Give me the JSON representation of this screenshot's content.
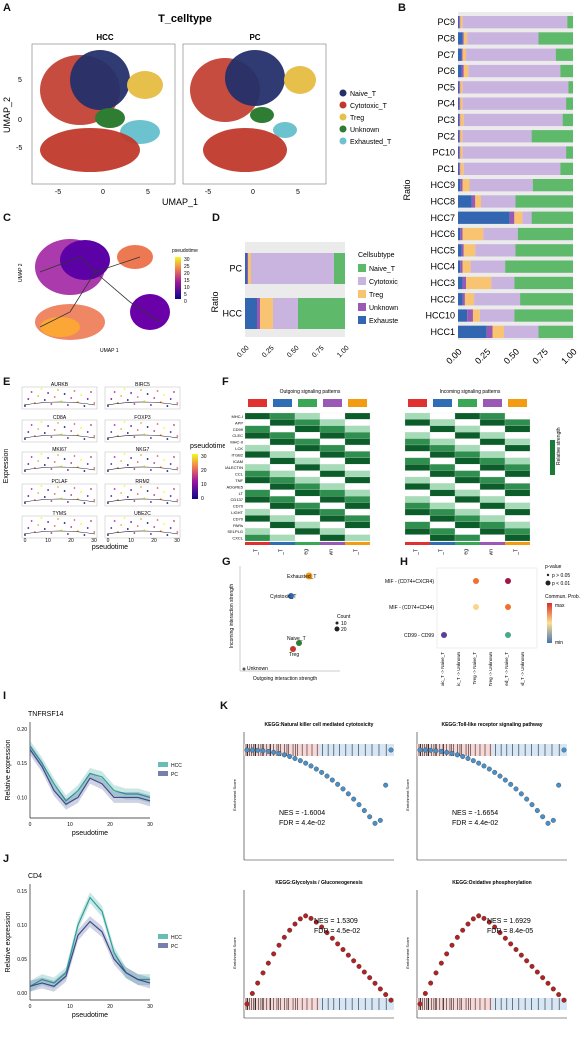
{
  "panel_letters": [
    "A",
    "B",
    "C",
    "D",
    "E",
    "F",
    "G",
    "H",
    "I",
    "J",
    "K"
  ],
  "panelA": {
    "title": "T_celltype",
    "facets": [
      "HCC",
      "PC"
    ],
    "xlabel": "UMAP_1",
    "ylabel": "UMAP_2",
    "xticks": [
      "-5",
      "0",
      "5",
      "-5",
      "0",
      "5"
    ],
    "yticks": [
      "5",
      "0",
      "-5"
    ],
    "legend": [
      {
        "label": "Naive_T",
        "color": "#24306a"
      },
      {
        "label": "Cytotoxic_T",
        "color": "#c0392b"
      },
      {
        "label": "Treg",
        "color": "#e6c04b"
      },
      {
        "label": "Unknown",
        "color": "#2e7d32"
      },
      {
        "label": "Exhausted_T",
        "color": "#6cc3cf"
      }
    ]
  },
  "panelB": {
    "ylabel": "Ratio",
    "xticks": [
      "0.00",
      "0.25",
      "0.50",
      "0.75",
      "1.00"
    ],
    "colors": {
      "exhausted": "#3266b0",
      "unknown": "#9b59b6",
      "treg": "#f8c471",
      "cytotoxic": "#c9b4e0",
      "naive": "#5fb96b"
    }
  },
  "panelC": {
    "legend_title": "pseudotime",
    "legend_ticks": [
      "30",
      "25",
      "20",
      "15",
      "10",
      "5",
      "0"
    ],
    "xlabel": "UMAP 1",
    "ylabel": "UMAP 2"
  },
  "panelD": {
    "ylabel": "Ratio",
    "categories": [
      "PC",
      "HCC"
    ],
    "xticks": [
      "0.00",
      "0.25",
      "0.50",
      "0.75",
      "1.00"
    ],
    "legend_title": "Cellsubtype",
    "legend": [
      {
        "label": "Naive_T",
        "color": "#5fb96b"
      },
      {
        "label": "Cytotoxic_T",
        "color": "#c9b4e0"
      },
      {
        "label": "Treg",
        "color": "#f8c471"
      },
      {
        "label": "Unknown",
        "color": "#9b59b6"
      },
      {
        "label": "Exhausted_T",
        "color": "#3266b0"
      }
    ]
  },
  "panelE": {
    "ylabel": "Expression",
    "xlabel": "pseudotime",
    "genes": [
      "AURKB",
      "BIRC5",
      "CD8A",
      "FOXP3",
      "MKI67",
      "NKG7",
      "PCLAF",
      "RRM2",
      "TYMS",
      "UBE2C"
    ],
    "xticks": [
      "0",
      "10",
      "20",
      "30"
    ],
    "legend_title": "pseudotime",
    "legend_ticks": [
      "30",
      "20",
      "10",
      "0"
    ]
  },
  "panelF": {
    "title_left": "Outgoing signaling patterns",
    "title_right": "Incoming signaling patterns",
    "rows": [
      "MHC-I",
      "APP",
      "CD99",
      "CLEC",
      "MHC-II",
      "LCK",
      "ITGB2",
      "ICAM",
      "GALECTIN",
      "CCL",
      "TNF",
      "ADGRE5",
      "LT",
      "CD137",
      "CD70",
      "LIGHT",
      "CD70",
      "PARs",
      "SELPLG",
      "CXCL"
    ],
    "cols": [
      "Naive_T",
      "Cytotoxic_T",
      "Treg",
      "Unknown",
      "Exhausted_T"
    ],
    "legend_title": "Relative strength"
  },
  "panelG": {
    "xlabel": "Outgoing interaction strength",
    "ylabel": "Incoming interaction strength",
    "points": [
      {
        "label": "Exhausted_T",
        "color": "#f39c12"
      },
      {
        "label": "Cytotoxic_T",
        "color": "#3266b0"
      },
      {
        "label": "Naive_T",
        "color": "#2e7d32"
      },
      {
        "label": "Treg",
        "color": "#c0392b"
      },
      {
        "label": "Unknown",
        "color": "#555555"
      }
    ],
    "legend_title": "Count",
    "legend_ticks": [
      "10",
      "20"
    ]
  },
  "panelH": {
    "rows": [
      "MIF - (CD74+CXCR4)",
      "MIF - (CD74+CD44)",
      "CD99 - CD99"
    ],
    "cols": [
      "Cytotoxic_T -> Naive_T",
      "Cytotoxic_T -> Unknown",
      "Treg -> Naive_T",
      "Treg -> Unknown",
      "Exhausted_T -> Naive_T",
      "Exhausted_T -> Unknown"
    ],
    "legend_pval_title": "p-value",
    "legend_pval": [
      "p > 0.05",
      "p < 0.01"
    ],
    "legend_prob_title": "Commun. Prob.",
    "legend_prob": [
      "max",
      "min"
    ]
  },
  "panelI": {
    "gene": "TNFRSF14",
    "ylabel": "Relative expression",
    "xlabel": "pseudotime",
    "yticks": [
      "0.20",
      "0.15",
      "0.10"
    ],
    "xticks": [
      "0",
      "10",
      "20",
      "30"
    ],
    "legend": [
      {
        "label": "HCC",
        "color": "#2aa198"
      },
      {
        "label": "PC",
        "color": "#3b4a8c"
      }
    ]
  },
  "panelJ": {
    "gene": "CD4",
    "ylabel": "Relative expression",
    "xlabel": "pseudotime",
    "yticks": [
      "0.15",
      "0.10",
      "0.05",
      "0.00"
    ],
    "xticks": [
      "0",
      "10",
      "20",
      "30"
    ],
    "legend": [
      {
        "label": "HCC",
        "color": "#2aa198"
      },
      {
        "label": "PC",
        "color": "#3b4a8c"
      }
    ]
  },
  "panelK": {
    "ylabel": "Enrichment Score",
    "plots": [
      {
        "title": "KEGG:Natural killer cell mediated cytotoxicity",
        "nes": "NES = -1.6004",
        "fdr": "FDR = 4.4e-02",
        "color": "#4a90c8"
      },
      {
        "title": "KEGG:Toll-like receptor signaling pathway",
        "nes": "NES = -1.6654",
        "fdr": "FDR = 4.4e-02",
        "color": "#4a90c8"
      },
      {
        "title": "KEGG:Glycolysis / Gluconeogenesis",
        "nes": "NES = 1.5309",
        "fdr": "FDR = 4.5e-02",
        "color": "#b22222"
      },
      {
        "title": "KEGG:Oxidative phosphorylation",
        "nes": "NES = 1.6929",
        "fdr": "FDR = 8.4e-05",
        "color": "#b22222"
      }
    ]
  },
  "chart_data": [
    {
      "type": "bar",
      "title": "",
      "ylabel": "Ratio",
      "orientation": "horizontal-stacked",
      "categories": [
        "PC9",
        "PC8",
        "PC7",
        "PC6",
        "PC5",
        "PC4",
        "PC3",
        "PC2",
        "PC10",
        "PC1",
        "HCC9",
        "HCC8",
        "HCC7",
        "HCC6",
        "HCC5",
        "HCC4",
        "HCC3",
        "HCC2",
        "HCC10",
        "HCC1"
      ],
      "series": [
        {
          "name": "Exhausted_T",
          "values": [
            0.01,
            0.04,
            0.03,
            0.03,
            0.01,
            0.01,
            0.01,
            0.01,
            0.01,
            0.01,
            0.02,
            0.12,
            0.45,
            0.02,
            0.03,
            0.02,
            0.04,
            0.04,
            0.08,
            0.25
          ]
        },
        {
          "name": "Unknown",
          "values": [
            0.01,
            0.01,
            0.01,
            0.02,
            0.01,
            0.01,
            0.01,
            0.01,
            0.01,
            0.01,
            0.02,
            0.03,
            0.04,
            0.02,
            0.02,
            0.02,
            0.03,
            0.02,
            0.05,
            0.05
          ]
        },
        {
          "name": "Treg",
          "values": [
            0.02,
            0.03,
            0.03,
            0.04,
            0.02,
            0.02,
            0.03,
            0.02,
            0.02,
            0.03,
            0.06,
            0.05,
            0.07,
            0.18,
            0.1,
            0.07,
            0.22,
            0.08,
            0.06,
            0.1
          ]
        },
        {
          "name": "Cytotoxic_T",
          "values": [
            0.91,
            0.62,
            0.78,
            0.8,
            0.92,
            0.9,
            0.86,
            0.6,
            0.9,
            0.84,
            0.55,
            0.3,
            0.08,
            0.3,
            0.35,
            0.3,
            0.2,
            0.4,
            0.3,
            0.3
          ]
        },
        {
          "name": "Naive_T",
          "values": [
            0.05,
            0.3,
            0.15,
            0.11,
            0.04,
            0.06,
            0.09,
            0.36,
            0.06,
            0.11,
            0.35,
            0.5,
            0.36,
            0.48,
            0.5,
            0.59,
            0.51,
            0.46,
            0.51,
            0.3
          ]
        }
      ],
      "xlim": [
        0,
        1
      ]
    },
    {
      "type": "bar",
      "title": "",
      "ylabel": "Ratio",
      "orientation": "horizontal-stacked",
      "categories": [
        "PC",
        "HCC"
      ],
      "series": [
        {
          "name": "Exhausted_T",
          "values": [
            0.02,
            0.12
          ]
        },
        {
          "name": "Unknown",
          "values": [
            0.01,
            0.03
          ]
        },
        {
          "name": "Treg",
          "values": [
            0.03,
            0.13
          ]
        },
        {
          "name": "Cytotoxic_T",
          "values": [
            0.83,
            0.25
          ]
        },
        {
          "name": "Naive_T",
          "values": [
            0.11,
            0.47
          ]
        }
      ],
      "xlim": [
        0,
        1
      ]
    },
    {
      "type": "line",
      "title": "TNFRSF14",
      "xlabel": "pseudotime",
      "ylabel": "Relative expression",
      "x": [
        0,
        3,
        6,
        9,
        12,
        15,
        18,
        21,
        24,
        27,
        30
      ],
      "series": [
        {
          "name": "HCC",
          "values": [
            0.175,
            0.15,
            0.12,
            0.095,
            0.11,
            0.135,
            0.13,
            0.11,
            0.105,
            0.105,
            0.1
          ]
        },
        {
          "name": "PC",
          "values": [
            0.17,
            0.145,
            0.11,
            0.09,
            0.1,
            0.128,
            0.12,
            0.1,
            0.1,
            0.1,
            0.095
          ]
        }
      ],
      "ylim": [
        0.07,
        0.21
      ]
    },
    {
      "type": "line",
      "title": "CD4",
      "xlabel": "pseudotime",
      "ylabel": "Relative expression",
      "x": [
        0,
        3,
        6,
        9,
        12,
        15,
        18,
        21,
        24,
        27,
        30
      ],
      "series": [
        {
          "name": "HCC",
          "values": [
            0.01,
            0.02,
            0.015,
            0.03,
            0.1,
            0.14,
            0.12,
            0.06,
            0.03,
            0.02,
            0.02
          ]
        },
        {
          "name": "PC",
          "values": [
            0.01,
            0.015,
            0.01,
            0.025,
            0.085,
            0.105,
            0.09,
            0.05,
            0.03,
            0.02,
            0.015
          ]
        }
      ],
      "ylim": [
        -0.01,
        0.16
      ]
    }
  ]
}
